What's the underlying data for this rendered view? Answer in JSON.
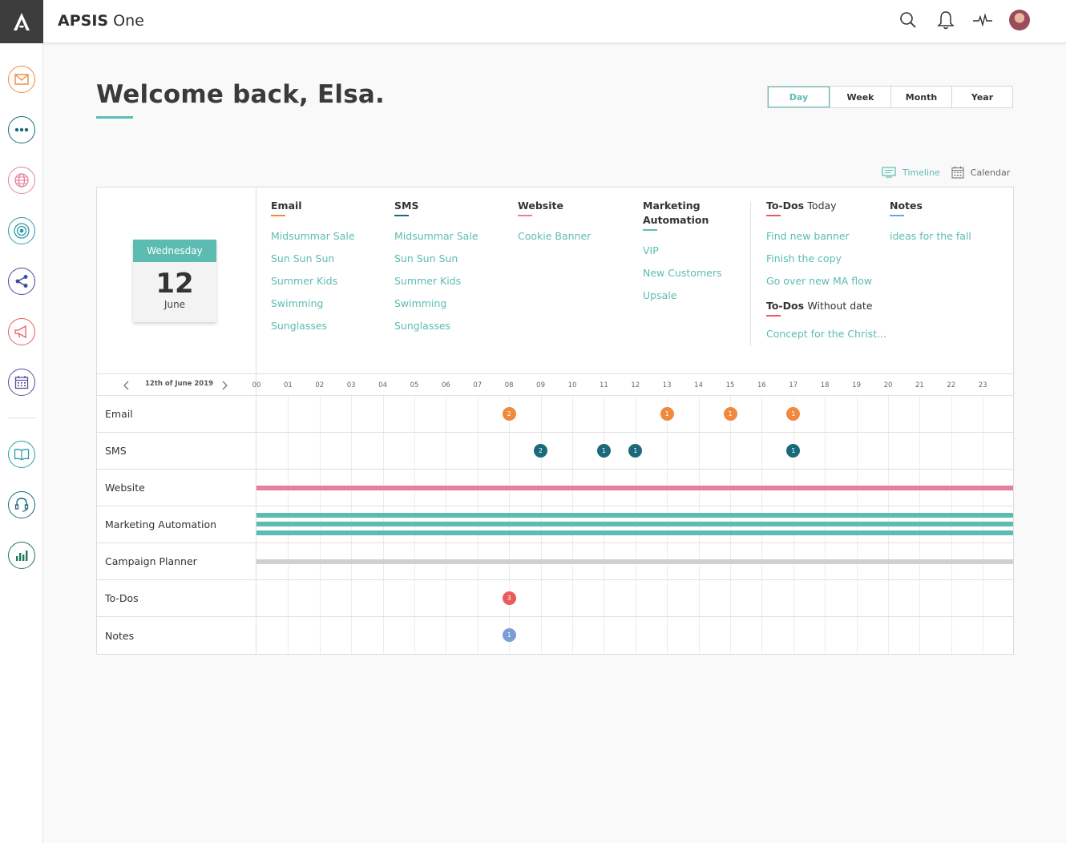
{
  "app": {
    "brand": "APSIS",
    "product": "One"
  },
  "welcome": "Welcome back, Elsa.",
  "periods": [
    "Day",
    "Week",
    "Month",
    "Year"
  ],
  "active_period": "Day",
  "views": {
    "timeline": "Timeline",
    "calendar": "Calendar"
  },
  "date_card": {
    "weekday": "Wednesday",
    "day": "12",
    "month": "June"
  },
  "columns": {
    "email": {
      "title": "Email",
      "color": "#f0883e",
      "items": [
        "Midsummar Sale",
        "Sun Sun Sun",
        "Summer Kids",
        "Swimming",
        "Sunglasses"
      ]
    },
    "sms": {
      "title": "SMS",
      "color": "#1a6a7c",
      "items": [
        "Midsummar Sale",
        "Sun Sun Sun",
        "Summer Kids",
        "Swimming",
        "Sunglasses"
      ]
    },
    "website": {
      "title": "Website",
      "color": "#e5809c",
      "items": [
        "Cookie Banner"
      ]
    },
    "ma": {
      "title_line1": "Marketing",
      "title_line2": "Automation",
      "color": "#5cbcb2",
      "items": [
        "VIP",
        "New Customers",
        "Upsale"
      ]
    },
    "todos": {
      "title_bold": "To-Dos",
      "title_light": "Today",
      "color": "#e85c5c",
      "items": [
        "Find new banner",
        "Finish the copy",
        "Go over new MA flow"
      ],
      "without_bold": "To-Dos",
      "without_light": "Without date",
      "without_items": [
        "Concept for the Christ..."
      ]
    },
    "notes": {
      "title": "Notes",
      "color": "#7b9fd4",
      "items": [
        "ideas for the fall"
      ]
    }
  },
  "timeline": {
    "date_label": "12th of June 2019",
    "hours": [
      "00",
      "01",
      "02",
      "03",
      "04",
      "05",
      "06",
      "07",
      "08",
      "09",
      "10",
      "11",
      "12",
      "13",
      "14",
      "15",
      "16",
      "17",
      "18",
      "19",
      "20",
      "21",
      "22",
      "23"
    ],
    "rows": [
      "Email",
      "SMS",
      "Website",
      "Marketing Automation",
      "Campaign Planner",
      "To-Dos",
      "Notes"
    ],
    "events": {
      "email": [
        {
          "hour": 8,
          "count": "2"
        },
        {
          "hour": 13,
          "count": "1"
        },
        {
          "hour": 15,
          "count": "1"
        },
        {
          "hour": 17,
          "count": "1"
        }
      ],
      "sms": [
        {
          "hour": 9,
          "count": "2"
        },
        {
          "hour": 11,
          "count": "1"
        },
        {
          "hour": 12,
          "count": "1"
        },
        {
          "hour": 17,
          "count": "1"
        }
      ],
      "todos": [
        {
          "hour": 8,
          "count": "3"
        }
      ],
      "notes": [
        {
          "hour": 8,
          "count": "1"
        }
      ]
    },
    "colors": {
      "email": "#f0883e",
      "sms": "#1a6a7c",
      "website": "#e5809c",
      "ma": "#5cbcb2",
      "planner": "#d0d0d0",
      "todos": "#e85c5c",
      "notes": "#7b9fd4"
    }
  },
  "sidebar_icons": [
    "email-icon",
    "more-icon",
    "globe-icon",
    "target-icon",
    "share-icon",
    "megaphone-icon",
    "calendar-icon",
    "book-icon",
    "headset-icon",
    "chart-icon"
  ],
  "topbar_icons": [
    "search-icon",
    "bell-icon",
    "activity-icon",
    "avatar"
  ]
}
